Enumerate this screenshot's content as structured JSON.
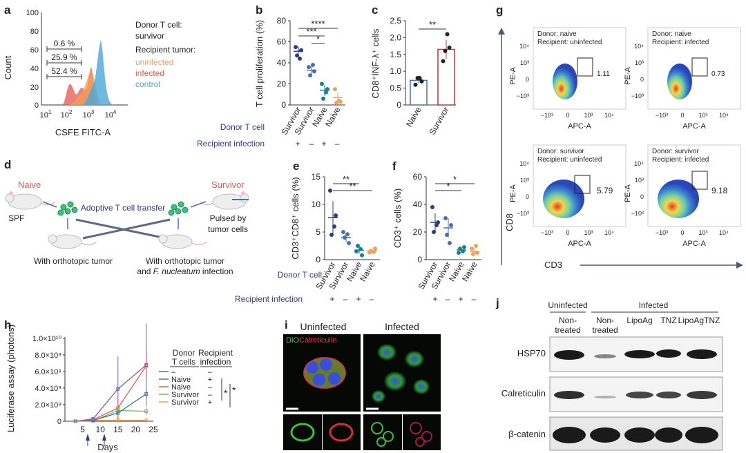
{
  "colors": {
    "axis": "#333333",
    "navy": "#2e3a87",
    "teal": "#1a7f8f",
    "red": "#e6554f",
    "orange": "#f0a05a",
    "blue": "#4ba8d8",
    "purple": "#7a5ca8",
    "green": "#6bbf59",
    "darkred": "#b33a3a"
  },
  "panel_a": {
    "letter": "a",
    "pcts": [
      "0.6 %",
      "25.9 %",
      "52.4 %"
    ],
    "legend_title": "Donor T cell:",
    "legend_donor": "survivor",
    "legend_recipient": "Recipient tumor:",
    "legend_items": [
      "uninfected",
      "infected",
      "control"
    ],
    "ylabel": "Count",
    "xlabel": "CSFE FITC-A",
    "yticks": [
      "0",
      "20",
      "40",
      "60",
      "80",
      "100"
    ],
    "xticks": [
      "10",
      "10",
      "10",
      "10"
    ],
    "xtick_exp": [
      "1",
      "2",
      "3",
      "4"
    ]
  },
  "chart_data": [
    {
      "type": "scatter",
      "title": "",
      "ylabel": "T cell proliferation (%)",
      "ylim": [
        0,
        80
      ],
      "categories": [
        "Survivor",
        "Survivor",
        "Naive",
        "Naive"
      ],
      "means": [
        51,
        33,
        14,
        7
      ],
      "points": [
        [
          55,
          52,
          47,
          44
        ],
        [
          36,
          32,
          28,
          38
        ],
        [
          20,
          15,
          6,
          12
        ],
        [
          15,
          3,
          2,
          4
        ]
      ],
      "yticks": [
        "0",
        "20",
        "40",
        "60",
        "80"
      ],
      "sig": [
        "****",
        "***",
        "*"
      ]
    },
    {
      "type": "bar",
      "title": "",
      "ylabel": "CD8⁺INF-λ⁺ cells",
      "ylim": [
        0,
        2.5
      ],
      "categories": [
        "Naive",
        "Survivor"
      ],
      "values": [
        0.73,
        1.65
      ],
      "points": [
        [
          0.6,
          0.8,
          0.8,
          0.7
        ],
        [
          1.3,
          1.6,
          2.1,
          1.7
        ]
      ],
      "yticks": [
        "0",
        "0.5",
        "1.0",
        "1.5",
        "2.0",
        "2.5"
      ],
      "sig": [
        "**"
      ]
    },
    {
      "type": "scatter",
      "title": "",
      "ylabel": "CD3⁺CD8⁺ cells (%)",
      "ylim": [
        0,
        15
      ],
      "categories": [
        "Survivor",
        "Survivor",
        "Naive",
        "Naive"
      ],
      "means": [
        7.6,
        4,
        1.7,
        1.6
      ],
      "points": [
        [
          12.5,
          8,
          4.5,
          6
        ],
        [
          5,
          3,
          4,
          4.6
        ],
        [
          1.5,
          0.8,
          2.5,
          1.9
        ],
        [
          1.3,
          2,
          1.6,
          1.4
        ]
      ],
      "yticks": [
        "0",
        "5",
        "10",
        "15"
      ],
      "sig": [
        "**",
        "**"
      ]
    },
    {
      "type": "scatter",
      "title": "",
      "ylabel": "CD3⁺ cells (%)",
      "ylim": [
        0,
        60
      ],
      "categories": [
        "Survivor",
        "Survivor",
        "Naive",
        "Naive"
      ],
      "means": [
        27,
        23,
        7,
        6
      ],
      "points": [
        [
          38,
          27,
          20,
          25
        ],
        [
          30,
          25,
          18,
          12
        ],
        [
          5,
          9,
          8,
          6
        ],
        [
          8,
          5,
          4,
          10
        ]
      ],
      "yticks": [
        "0",
        "20",
        "40",
        "60"
      ],
      "sig": [
        "*",
        "*"
      ]
    },
    {
      "type": "line",
      "title": "",
      "ylabel": "Luciferase assay (photons)",
      "xlabel": "Days",
      "x": [
        3,
        8,
        15,
        23
      ],
      "xlim": [
        0,
        25
      ],
      "ylim": [
        0,
        10000000000.0
      ],
      "series": [
        {
          "name": "Naive",
          "color": "#7a5ca8",
          "values": [
            0,
            300000000.0,
            3900000000.0,
            6800000000.0
          ],
          "err": [
            0,
            50000000.0,
            3900000000.0,
            5000000000.0
          ]
        },
        {
          "name": "Naive",
          "color": "#e6554f",
          "values": [
            0,
            200000000.0,
            1600000000.0,
            6700000000.0
          ],
          "err": [
            0,
            30000000.0,
            1200000000.0,
            2000000000.0
          ]
        },
        {
          "name": "Survivor",
          "color": "#6bbf59",
          "values": [
            0,
            50000000.0,
            1300000000.0,
            1200000000.0
          ],
          "err": [
            0,
            20000000.0,
            400000000.0,
            500000000.0
          ]
        },
        {
          "name": "Survivor",
          "color": "#f0a05a",
          "values": [
            0,
            100000000.0,
            100000000.0,
            100000000.0
          ],
          "err": [
            0,
            20000000.0,
            100000000.0,
            100000000.0
          ]
        },
        {
          "name": "",
          "color": "#4a6fb0",
          "values": [
            0,
            100000000.0,
            1000000000.0,
            3300000000.0
          ],
          "err": [
            0,
            20000000.0,
            300000000.0,
            500000000.0
          ]
        }
      ],
      "yticks": [
        "0",
        "2.0×10⁹",
        "4.0×10⁹",
        "6.0×10⁹",
        "8.0×10⁹",
        "1.0×10¹⁰"
      ],
      "xticks": [
        "5",
        "10",
        "15",
        "20",
        "25"
      ]
    }
  ],
  "panel_b": {
    "letter": "b",
    "donor_label": "Donor T cell",
    "recipient_label": "Recipient infection",
    "signs": [
      "+",
      "–",
      "+",
      "–"
    ]
  },
  "panel_c": {
    "letter": "c"
  },
  "panel_d": {
    "letter": "d",
    "naive": "Naive",
    "survivor": "Survivor",
    "spf": "SPF",
    "transfer": "Adoptive T cell transfer",
    "pulsed_line1": "Pulsed by",
    "pulsed_line2": "tumor cells",
    "left_caption": "With orthotopic tumor",
    "right_caption_1": "With orthotopic tumor",
    "right_caption_2a": "and ",
    "right_caption_2b": "F. nucleatum",
    "right_caption_2c": " infection"
  },
  "panel_e": {
    "letter": "e",
    "donor_label": "Donor T cell",
    "recipient_label": "Recipient infection",
    "signs": [
      "+",
      "–",
      "+",
      "–"
    ]
  },
  "panel_f": {
    "letter": "f",
    "signs": [
      "+",
      "–",
      "+",
      "–"
    ]
  },
  "panel_g": {
    "letter": "g",
    "ylabel": "CD8",
    "xlabel": "CD3",
    "plots": [
      {
        "donor": "Donor: naive",
        "recipient": "Recipient: uninfected",
        "value": "1.11"
      },
      {
        "donor": "Donor: naive",
        "recipient": "Recipient: infected",
        "value": "0.73"
      },
      {
        "donor": "Donor: survivor",
        "recipient": "Recipient: uninfected",
        "value": "5.79"
      },
      {
        "donor": "Donor: survivor",
        "recipient": "Recipient: infected",
        "value": "9.18"
      }
    ],
    "plot_ylabel": "PE-A",
    "plot_xlabel": "APC-A"
  },
  "panel_h": {
    "letter": "h",
    "legend_donor": "Donor",
    "legend_donor2": "T cells",
    "legend_recipient": "Recipient",
    "legend_recipient2": "infection",
    "legend_rows": [
      {
        "name": "–",
        "inf": "–"
      },
      {
        "name": "Naive",
        "inf": "+"
      },
      {
        "name": "Naive",
        "inf": "–"
      },
      {
        "name": "Survivor",
        "inf": "–"
      },
      {
        "name": "Survivor",
        "inf": "+"
      }
    ],
    "sig": [
      "*",
      "*"
    ]
  },
  "panel_i": {
    "letter": "i",
    "uninfected": "Uninfected",
    "infected": "Infected",
    "dio": "DiO",
    "calreticulin": "Calreticulin"
  },
  "panel_j": {
    "letter": "j",
    "uninfected": "Uninfected",
    "infected": "Infected",
    "lanes": [
      "Non-\ntreated",
      "Non-\ntreated",
      "LipoAg",
      "TNZ",
      "LipoAgTNZ"
    ],
    "lane1a": "Non-",
    "lane1b": "treated",
    "lane2a": "Non-",
    "lane2b": "treated",
    "lane3": "LipoAg",
    "lane4": "TNZ",
    "lane5": "LipoAgTNZ",
    "rows": [
      "HSP70",
      "Calreticulin",
      "β-catenin"
    ]
  }
}
